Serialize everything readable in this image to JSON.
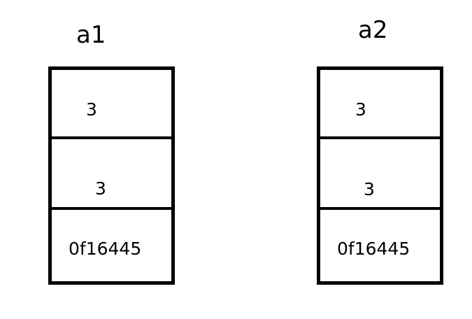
{
  "arrays": [
    {
      "name": "a1",
      "cells": [
        "3",
        "3",
        "0f16445"
      ]
    },
    {
      "name": "a2",
      "cells": [
        "3",
        "3",
        "0f16445"
      ]
    }
  ]
}
